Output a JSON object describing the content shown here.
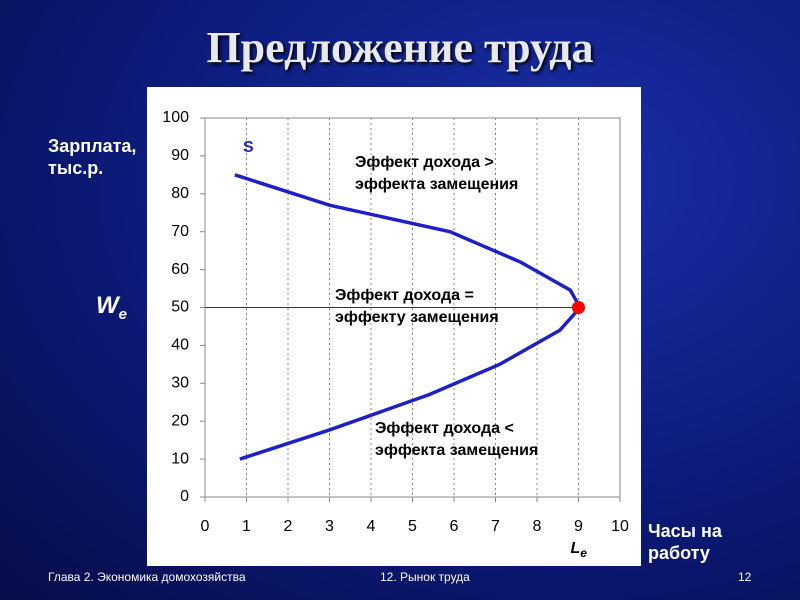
{
  "chart_data": {
    "type": "line",
    "title": "Предложение труда",
    "x_label": [
      "Часы на",
      "работу"
    ],
    "y_label": [
      "Зарплата,",
      "тыс.р."
    ],
    "x": [
      0.72,
      3.0,
      5.9,
      7.6,
      8.8,
      9.04,
      8.55,
      7.1,
      5.4,
      3.0,
      0.84
    ],
    "series": [
      {
        "name": "S",
        "color": "#1f1fc8",
        "values": [
          85,
          77,
          70,
          62,
          54.6,
          50,
          44,
          35,
          27,
          17.7,
          10
        ]
      }
    ],
    "xlim": [
      0,
      10
    ],
    "xticks": [
      0,
      1,
      2,
      3,
      4,
      5,
      6,
      7,
      8,
      9,
      10
    ],
    "ylim": [
      0,
      100
    ],
    "yticks": [
      0,
      10,
      20,
      30,
      40,
      50,
      60,
      70,
      80,
      90,
      100
    ],
    "grid": true,
    "equilibrium": {
      "x": 9,
      "y": 50,
      "color": "#ff0000",
      "wage_label": "W",
      "hours_label": "L",
      "subscript": "e"
    },
    "annotations": [
      [
        "Эффект дохода >",
        "эффекта замещения"
      ],
      [
        "Эффект дохода =",
        "эффекту замещения"
      ],
      [
        "Эффект дохода <",
        "эффекта замещения"
      ]
    ]
  },
  "footer": {
    "left": "Глава 2. Экономика домохозяйства",
    "center": "12. Рынок труда",
    "page": "12"
  }
}
